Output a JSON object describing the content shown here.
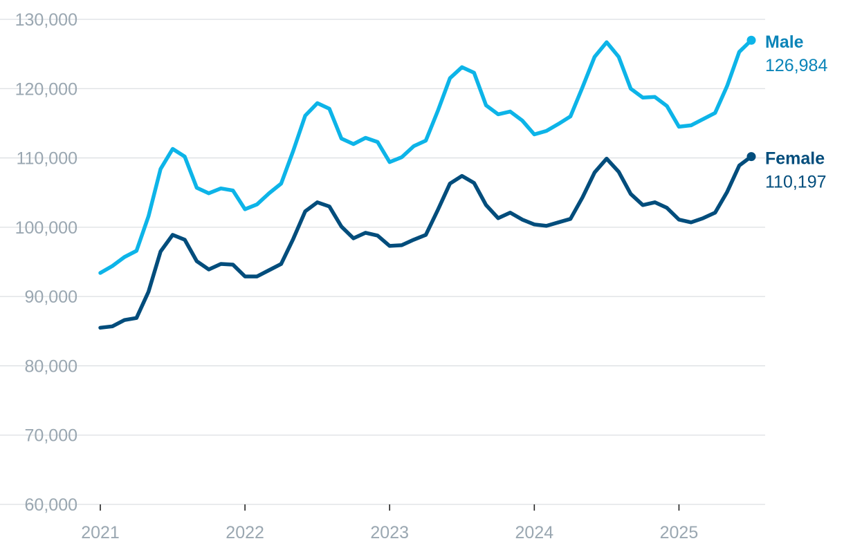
{
  "chart_data": {
    "type": "line",
    "title": "",
    "xlabel": "",
    "ylabel": "",
    "ylim": [
      60000,
      130000
    ],
    "yticks": [
      60000,
      70000,
      80000,
      90000,
      100000,
      110000,
      120000,
      130000
    ],
    "ytick_labels": [
      "60,000",
      "70,000",
      "80,000",
      "90,000",
      "100,000",
      "110,000",
      "120,000",
      "130,000"
    ],
    "xlim": [
      "2021-01",
      "2025-07"
    ],
    "xticks": [
      "2021-01",
      "2022-01",
      "2023-01",
      "2024-01",
      "2025-01"
    ],
    "xtick_labels": [
      "2021",
      "2022",
      "2023",
      "2024",
      "2025"
    ],
    "grid": "horizontal",
    "legend": "end-of-line labels",
    "x": [
      "2021-01",
      "2021-02",
      "2021-03",
      "2021-04",
      "2021-05",
      "2021-06",
      "2021-07",
      "2021-08",
      "2021-09",
      "2021-10",
      "2021-11",
      "2021-12",
      "2022-01",
      "2022-02",
      "2022-03",
      "2022-04",
      "2022-05",
      "2022-06",
      "2022-07",
      "2022-08",
      "2022-09",
      "2022-10",
      "2022-11",
      "2022-12",
      "2023-01",
      "2023-02",
      "2023-03",
      "2023-04",
      "2023-05",
      "2023-06",
      "2023-07",
      "2023-08",
      "2023-09",
      "2023-10",
      "2023-11",
      "2023-12",
      "2024-01",
      "2024-02",
      "2024-03",
      "2024-04",
      "2024-05",
      "2024-06",
      "2024-07",
      "2024-08",
      "2024-09",
      "2024-10",
      "2024-11",
      "2024-12",
      "2025-01",
      "2025-02",
      "2025-03",
      "2025-04",
      "2025-05",
      "2025-06",
      "2025-07"
    ],
    "series": [
      {
        "name": "Male",
        "end_label": "126,984",
        "color": "#0db4e8",
        "label_color": "#0a84b8",
        "values": [
          93400,
          94400,
          95700,
          96600,
          101600,
          108400,
          111300,
          110200,
          105700,
          104900,
          105600,
          105300,
          102600,
          103300,
          104900,
          106300,
          111000,
          116100,
          117900,
          117100,
          112800,
          112000,
          112900,
          112300,
          109400,
          110100,
          111700,
          112500,
          116800,
          121500,
          123100,
          122300,
          117600,
          116300,
          116700,
          115400,
          113400,
          113900,
          114900,
          116000,
          120200,
          124600,
          126700,
          124600,
          120000,
          118700,
          118800,
          117500,
          114500,
          114700,
          115600,
          116500,
          120400,
          125300,
          126984
        ]
      },
      {
        "name": "Female",
        "end_label": "110,197",
        "color": "#024d7c",
        "label_color": "#024d7c",
        "values": [
          85500,
          85700,
          86600,
          86900,
          90700,
          96500,
          98900,
          98200,
          95100,
          93900,
          94700,
          94600,
          92900,
          92900,
          93800,
          94700,
          98300,
          102300,
          103600,
          103000,
          100100,
          98400,
          99200,
          98800,
          97300,
          97400,
          98200,
          98900,
          102500,
          106300,
          107400,
          106400,
          103200,
          101300,
          102100,
          101100,
          100400,
          100200,
          100700,
          101200,
          104300,
          107900,
          109900,
          108000,
          104800,
          103200,
          103600,
          102800,
          101100,
          100700,
          101300,
          102100,
          105100,
          108900,
          110197
        ]
      }
    ]
  }
}
